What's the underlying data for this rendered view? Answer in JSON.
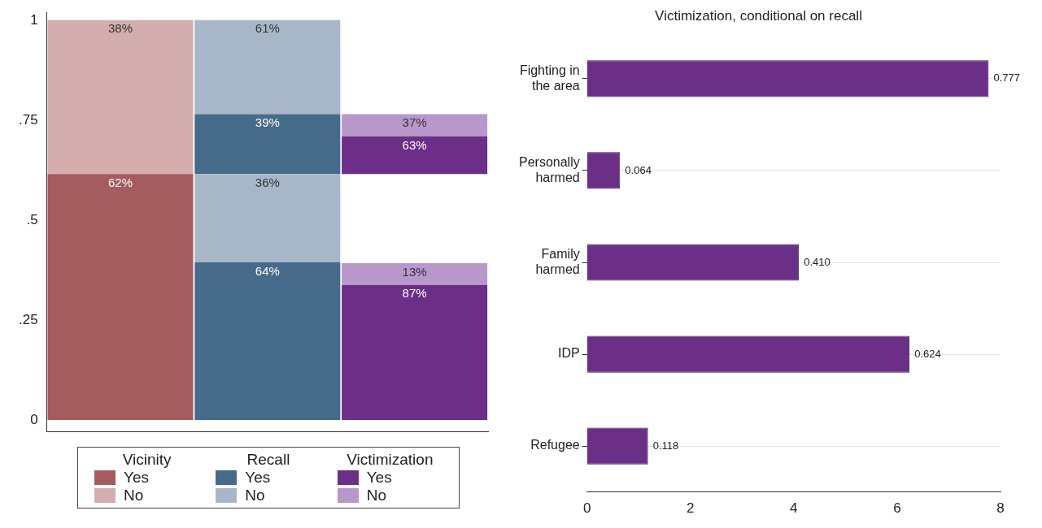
{
  "chart_data": [
    {
      "type": "bar",
      "categories": [
        "Vicinity",
        "Recall",
        "Victimization"
      ],
      "series": [
        {
          "name": "Yes",
          "color": "#a45c5e",
          "values": [
            0.615,
            null,
            null
          ],
          "base": [
            0,
            null,
            null
          ]
        },
        {
          "name": "No",
          "color": "#d4aeae",
          "values": [
            0.385,
            null,
            null
          ],
          "base": [
            0.615,
            null,
            null
          ]
        },
        {
          "name": "Yes",
          "color": "#466a8a",
          "values": [
            null,
            0.394,
            null
          ],
          "base": [
            null,
            0,
            null
          ]
        },
        {
          "name": "No",
          "color": "#a7b7c8",
          "values": [
            null,
            0.221,
            null
          ],
          "base": [
            null,
            0.394,
            null
          ]
        },
        {
          "color": "#466a8a",
          "values": [
            null,
            0.15,
            null
          ],
          "base": [
            null,
            0.615,
            null
          ]
        },
        {
          "color": "#a7b7c8",
          "values": [
            null,
            0.235,
            null
          ],
          "base": [
            null,
            0.765,
            null
          ]
        },
        {
          "name": "Yes",
          "color": "#6b2f87",
          "values": [
            null,
            null,
            0.338
          ],
          "base": [
            null,
            null,
            0
          ]
        },
        {
          "name": "No",
          "color": "#b898ca",
          "values": [
            null,
            null,
            0.054
          ],
          "base": [
            null,
            null,
            0.338
          ]
        },
        {
          "color": "#6b2f87",
          "values": [
            null,
            null,
            0.094
          ],
          "base": [
            null,
            null,
            0.615
          ]
        },
        {
          "color": "#b898ca",
          "values": [
            null,
            null,
            0.056
          ],
          "base": [
            null,
            null,
            0.709
          ]
        }
      ],
      "ylim": [
        -0.03,
        1.02
      ],
      "yticks": [
        {
          "value": 0,
          "label": "0"
        },
        {
          "value": 0.25,
          "label": ".25"
        },
        {
          "value": 0.5,
          "label": ".5"
        },
        {
          "value": 0.75,
          "label": ".75"
        },
        {
          "value": 1,
          "label": "1"
        }
      ],
      "annotations": [
        {
          "text": "62%",
          "x": "Vicinity",
          "y": 0.615
        },
        {
          "text": "38%",
          "x": "Vicinity",
          "y": 1
        },
        {
          "text": "64%",
          "x": "Recall",
          "y": 0.394
        },
        {
          "text": "36%",
          "x": "Recall",
          "y": 0.615
        },
        {
          "text": "39%",
          "x": "Recall",
          "y": 0.765
        },
        {
          "text": "61%",
          "x": "Recall",
          "y": 1
        },
        {
          "text": "87%",
          "x": "Victimization",
          "y": 0.338
        },
        {
          "text": "13%",
          "x": "Victimization",
          "y": 0.392
        },
        {
          "text": "63%",
          "x": "Victimization",
          "y": 0.709
        },
        {
          "text": "37%",
          "x": "Victimization",
          "y": 0.765
        }
      ],
      "legend": "bottom",
      "tick_labels": "y"
    },
    {
      "type": "bar",
      "orientation": "horizontal",
      "title": "Victimization, conditional on recall",
      "categories": [
        "Fighting in the area",
        "Personally harmed",
        "Family harmed",
        "IDP",
        "Refugee"
      ],
      "values": [
        7.77,
        0.64,
        4.1,
        6.24,
        1.18
      ],
      "color": "#6b2f87",
      "annotations": [
        {
          "text": "0.777",
          "x": 7.77,
          "y": "Fighting in the area"
        },
        {
          "text": "0.064",
          "x": 0.64,
          "y": "Personally harmed"
        },
        {
          "text": "0.410",
          "x": 4.1,
          "y": "Family harmed"
        },
        {
          "text": "0.624",
          "x": 6.24,
          "y": "IDP"
        },
        {
          "text": "0.118",
          "x": 1.18,
          "y": "Refugee"
        }
      ],
      "xlim": [
        0,
        8
      ],
      "xticks": [
        0,
        2,
        4,
        6,
        8
      ],
      "grid": "y"
    }
  ]
}
